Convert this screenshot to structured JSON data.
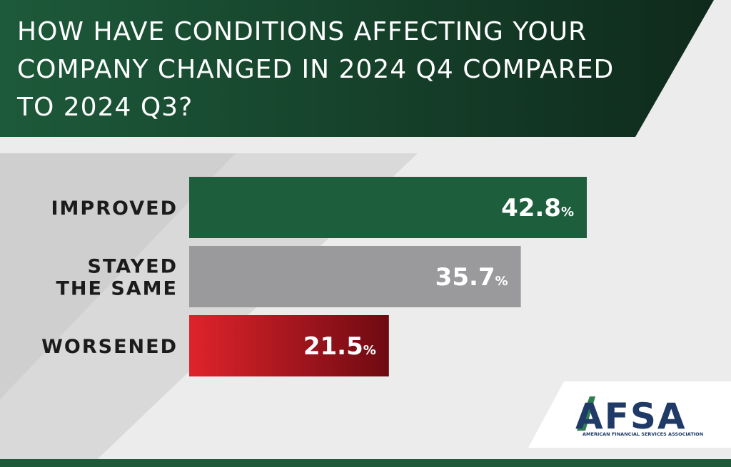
{
  "title": "HOW HAVE CONDITIONS AFFECTING YOUR COMPANY CHANGED IN 2024 Q4 COMPARED TO 2024 Q3?",
  "colors": {
    "banner_dark": "#0f2a1c",
    "banner_green": "#1d5a3a",
    "improved": "#1d5e3d",
    "stayed": "#9a9a9c",
    "worsened_start": "#e0232b",
    "worsened_end": "#6e0a12",
    "logo_navy": "#1f3a66",
    "logo_green": "#2e7d4f"
  },
  "chart_data": {
    "type": "bar",
    "orientation": "horizontal",
    "categories": [
      "IMPROVED",
      "STAYED THE SAME",
      "WORSENED"
    ],
    "category_lines": [
      [
        "IMPROVED"
      ],
      [
        "STAYED",
        "THE SAME"
      ],
      [
        "WORSENED"
      ]
    ],
    "values": [
      42.8,
      35.7,
      21.5
    ],
    "value_labels": [
      "42.8",
      "35.7",
      "21.5"
    ],
    "unit": "%",
    "xlim": [
      0,
      100
    ],
    "grid": false,
    "legend": "none"
  },
  "logo": {
    "name": "AFSA",
    "subtitle": "AMERICAN FINANCIAL SERVICES ASSOCIATION"
  }
}
